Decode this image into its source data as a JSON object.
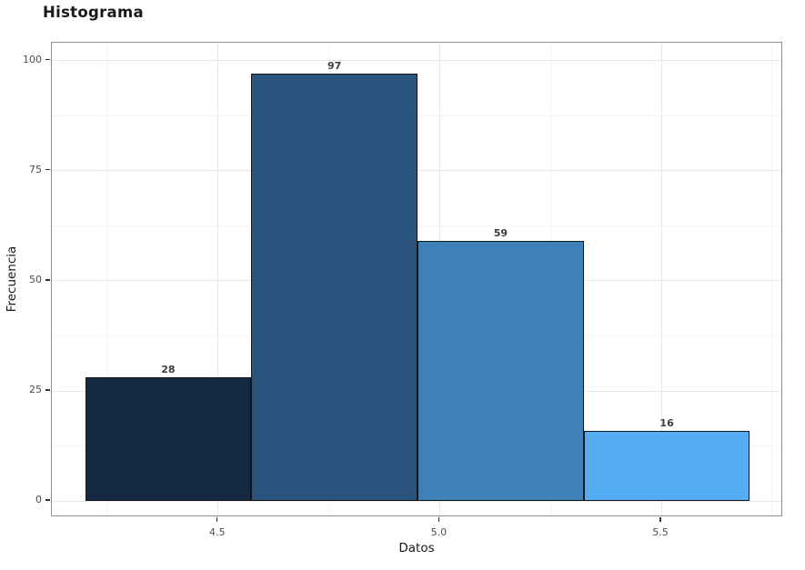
{
  "title": "Histograma",
  "chart_data": {
    "type": "bar",
    "subtype": "histogram",
    "title": "Histograma",
    "xlabel": "Datos",
    "ylabel": "Frecuencia",
    "bins": [
      {
        "x0": 4.2,
        "x1": 4.575,
        "count": 28,
        "label": "28",
        "color": "#152a42"
      },
      {
        "x0": 4.575,
        "x1": 4.95,
        "count": 97,
        "label": "97",
        "color": "#2a547d"
      },
      {
        "x0": 4.95,
        "x1": 5.325,
        "count": 59,
        "label": "59",
        "color": "#3f80b8"
      },
      {
        "x0": 5.325,
        "x1": 5.7,
        "count": 16,
        "label": "16",
        "color": "#56adf6"
      }
    ],
    "x_ticks": [
      4.5,
      5.0,
      5.5
    ],
    "x_tick_labels": [
      "4.5",
      "5.0",
      "5.5"
    ],
    "y_ticks": [
      0,
      25,
      50,
      75,
      100
    ],
    "y_tick_labels": [
      "0",
      "25",
      "50",
      "75",
      "100"
    ],
    "x_minor_ticks": [
      4.25,
      4.75,
      5.25,
      5.75
    ],
    "y_minor_ticks": [
      12.5,
      37.5,
      62.5,
      87.5
    ],
    "xlim": [
      4.125,
      5.775
    ],
    "ylim": [
      -3.7,
      104.1
    ],
    "grid": true,
    "legend": false,
    "colors": {
      "bar_border": "#151515",
      "panel_border": "#8f8f8f",
      "grid_major": "#e7e7e7",
      "grid_minor": "#f5f5f5",
      "tick_label": "#4d4d4d",
      "title": "#1a1a1a"
    }
  }
}
